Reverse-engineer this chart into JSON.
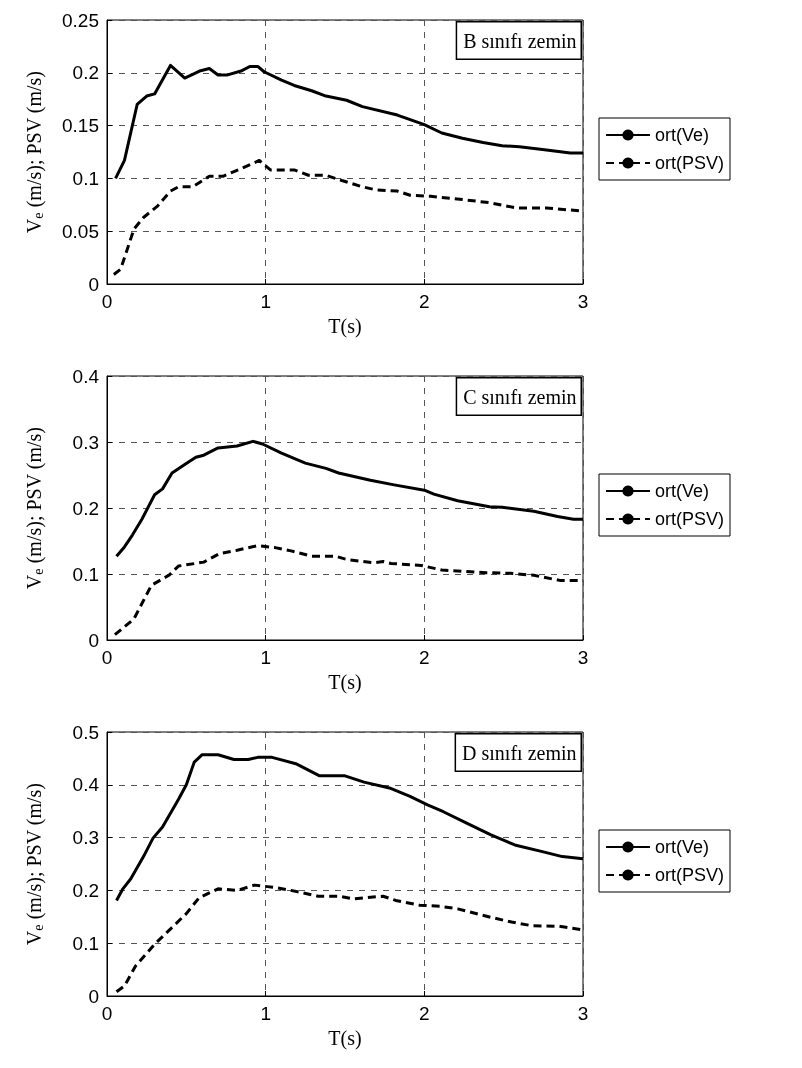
{
  "chart_data": [
    {
      "type": "line",
      "xlabel": "T(s)",
      "ylabel": "V$_{e}$ (m/s); PSV (m/s)",
      "annotations": [
        "B sınıfı zemin"
      ],
      "xlim": [
        0,
        3
      ],
      "xticks": [
        0,
        1,
        2,
        3
      ],
      "ylim": [
        0,
        0.25
      ],
      "yticks": [
        0,
        0.05,
        0.1,
        0.15,
        0.2,
        0.25
      ],
      "grid": true,
      "legend": "right",
      "series": [
        {
          "name": "ort(Ve)",
          "color": "#000000",
          "line_style": "solid",
          "x": [
            0.054,
            0.11,
            0.19,
            0.25,
            0.3,
            0.4,
            0.49,
            0.59,
            0.645,
            0.7,
            0.76,
            0.85,
            0.9,
            0.95,
            0.99,
            1.1,
            1.18,
            1.29,
            1.38,
            1.51,
            1.61,
            1.83,
            2.0,
            2.11,
            2.24,
            2.37,
            2.49,
            2.6,
            2.77,
            2.92,
            3.0
          ],
          "values": [
            0.1,
            0.117,
            0.17,
            0.178,
            0.18,
            0.207,
            0.195,
            0.202,
            0.204,
            0.198,
            0.198,
            0.202,
            0.206,
            0.206,
            0.201,
            0.193,
            0.188,
            0.183,
            0.178,
            0.174,
            0.168,
            0.16,
            0.151,
            0.143,
            0.138,
            0.134,
            0.131,
            0.13,
            0.127,
            0.124,
            0.124
          ]
        },
        {
          "name": "ort(PSV)",
          "color": "#000000",
          "line_style": "dashed",
          "x": [
            0.043,
            0.086,
            0.17,
            0.23,
            0.32,
            0.4,
            0.45,
            0.54,
            0.645,
            0.73,
            0.84,
            0.96,
            1.03,
            1.18,
            1.27,
            1.38,
            1.48,
            1.61,
            1.7,
            1.83,
            1.91,
            2.04,
            2.24,
            2.41,
            2.58,
            2.77,
            3.0
          ],
          "values": [
            0.009,
            0.014,
            0.052,
            0.063,
            0.074,
            0.088,
            0.092,
            0.092,
            0.102,
            0.102,
            0.109,
            0.117,
            0.108,
            0.108,
            0.103,
            0.103,
            0.098,
            0.092,
            0.089,
            0.088,
            0.084,
            0.083,
            0.08,
            0.077,
            0.072,
            0.072,
            0.069
          ]
        }
      ]
    },
    {
      "type": "line",
      "xlabel": "T(s)",
      "ylabel": "V$_{e}$ (m/s); PSV (m/s)",
      "annotations": [
        "C sınıfı zemin"
      ],
      "xlim": [
        0,
        3
      ],
      "xticks": [
        0,
        1,
        2,
        3
      ],
      "ylim": [
        0,
        0.4
      ],
      "yticks": [
        0,
        0.1,
        0.2,
        0.3,
        0.4
      ],
      "grid": true,
      "legend": "right",
      "series": [
        {
          "name": "ort(Ve)",
          "color": "#000000",
          "line_style": "solid",
          "x": [
            0.06,
            0.11,
            0.16,
            0.22,
            0.3,
            0.35,
            0.41,
            0.49,
            0.56,
            0.61,
            0.7,
            0.82,
            0.92,
            0.98,
            1.1,
            1.25,
            1.38,
            1.46,
            1.66,
            1.81,
            2.0,
            2.06,
            2.21,
            2.41,
            2.49,
            2.69,
            2.84,
            2.94,
            3.0
          ],
          "values": [
            0.127,
            0.141,
            0.159,
            0.183,
            0.22,
            0.229,
            0.253,
            0.266,
            0.277,
            0.28,
            0.291,
            0.294,
            0.301,
            0.297,
            0.283,
            0.268,
            0.26,
            0.253,
            0.242,
            0.235,
            0.227,
            0.221,
            0.211,
            0.202,
            0.201,
            0.195,
            0.187,
            0.183,
            0.183
          ]
        },
        {
          "name": "ort(PSV)",
          "color": "#000000",
          "line_style": "dashed",
          "x": [
            0.05,
            0.17,
            0.28,
            0.39,
            0.45,
            0.61,
            0.71,
            0.82,
            0.95,
            1.06,
            1.16,
            1.29,
            1.44,
            1.51,
            1.68,
            1.74,
            1.79,
            1.98,
            2.11,
            2.39,
            2.54,
            2.69,
            2.86,
            3.0
          ],
          "values": [
            0.008,
            0.032,
            0.083,
            0.098,
            0.112,
            0.118,
            0.131,
            0.136,
            0.143,
            0.14,
            0.135,
            0.127,
            0.127,
            0.122,
            0.117,
            0.119,
            0.116,
            0.113,
            0.106,
            0.102,
            0.101,
            0.098,
            0.09,
            0.09
          ]
        }
      ]
    },
    {
      "type": "line",
      "xlabel": "T(s)",
      "ylabel": "V$_{e}$ (m/s); PSV (m/s)",
      "annotations": [
        "D sınıfı zemin"
      ],
      "xlim": [
        0,
        3
      ],
      "xticks": [
        0,
        1,
        2,
        3
      ],
      "ylim": [
        0,
        0.5
      ],
      "yticks": [
        0,
        0.1,
        0.2,
        0.3,
        0.4,
        0.5
      ],
      "grid": true,
      "legend": "right",
      "series": [
        {
          "name": "ort(Ve)",
          "color": "#000000",
          "line_style": "solid",
          "x": [
            0.06,
            0.1,
            0.15,
            0.23,
            0.29,
            0.35,
            0.45,
            0.5,
            0.55,
            0.6,
            0.7,
            0.8,
            0.89,
            0.95,
            1.04,
            1.19,
            1.34,
            1.5,
            1.62,
            1.78,
            1.91,
            2.02,
            2.12,
            2.27,
            2.42,
            2.57,
            2.75,
            2.87,
            3.0
          ],
          "values": [
            0.181,
            0.203,
            0.222,
            0.264,
            0.299,
            0.32,
            0.372,
            0.4,
            0.443,
            0.457,
            0.457,
            0.448,
            0.448,
            0.452,
            0.452,
            0.44,
            0.417,
            0.417,
            0.405,
            0.394,
            0.378,
            0.362,
            0.349,
            0.327,
            0.305,
            0.286,
            0.273,
            0.264,
            0.26
          ]
        },
        {
          "name": "ort(PSV)",
          "color": "#000000",
          "line_style": "dashed",
          "x": [
            0.06,
            0.11,
            0.18,
            0.3,
            0.5,
            0.58,
            0.7,
            0.82,
            0.93,
            1.07,
            1.16,
            1.33,
            1.46,
            1.55,
            1.74,
            1.82,
            1.97,
            2.1,
            2.21,
            2.42,
            2.55,
            2.68,
            2.85,
            3.0
          ],
          "values": [
            0.008,
            0.019,
            0.057,
            0.098,
            0.156,
            0.186,
            0.203,
            0.2,
            0.21,
            0.205,
            0.2,
            0.189,
            0.189,
            0.184,
            0.189,
            0.181,
            0.172,
            0.17,
            0.165,
            0.149,
            0.14,
            0.133,
            0.132,
            0.125
          ]
        }
      ]
    }
  ]
}
